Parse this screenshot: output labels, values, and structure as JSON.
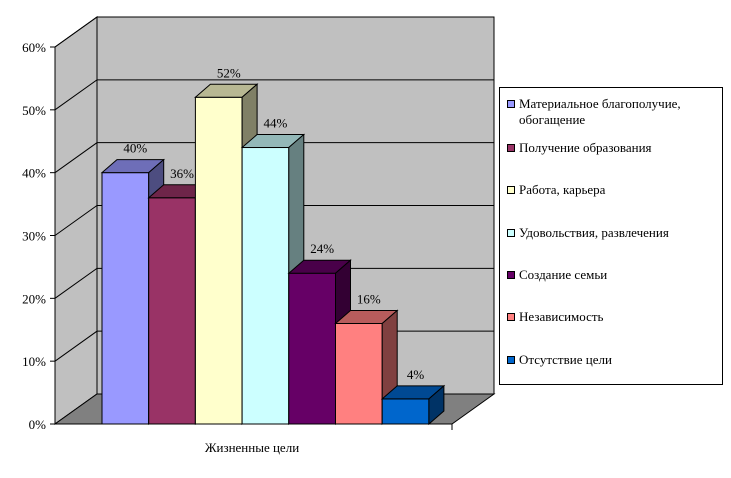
{
  "chart_data": {
    "type": "bar",
    "title": "",
    "xlabel": "",
    "ylabel": "",
    "categories": [
      "Жизненные цели"
    ],
    "series": [
      {
        "name": "Материальное благополучие, обогащение",
        "values": [
          40
        ],
        "color": "#9999FF"
      },
      {
        "name": "Получение образования",
        "values": [
          36
        ],
        "color": "#993366"
      },
      {
        "name": "Работа, карьера",
        "values": [
          52
        ],
        "color": "#FFFFCC"
      },
      {
        "name": "Удовольствия, развлечения",
        "values": [
          44
        ],
        "color": "#CCFFFF"
      },
      {
        "name": "Создание семьи",
        "values": [
          24
        ],
        "color": "#660066"
      },
      {
        "name": "Независимость",
        "values": [
          16
        ],
        "color": "#FF8080"
      },
      {
        "name": "Отсутствие цели",
        "values": [
          4
        ],
        "color": "#0066CC"
      }
    ],
    "data_labels": [
      "40%",
      "36%",
      "52%",
      "44%",
      "24%",
      "16%",
      "4%"
    ],
    "y_ticks": [
      "0%",
      "10%",
      "20%",
      "30%",
      "40%",
      "50%",
      "60%"
    ],
    "ylim": [
      0,
      60
    ],
    "grid": true,
    "legend_position": "right",
    "wall_color": "#C0C0C0",
    "floor_color": "#808080"
  }
}
